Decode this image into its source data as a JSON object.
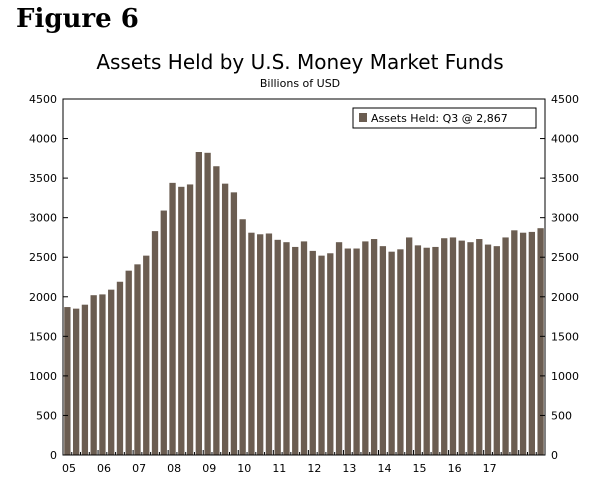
{
  "figure_label": "Figure 6",
  "chart_data": {
    "type": "bar",
    "title": "Assets Held by U.S. Money Market Funds",
    "subtitle": "Billions of USD",
    "xlabel": "",
    "ylabel": "",
    "ylim": [
      0,
      4500
    ],
    "yticks": [
      0,
      500,
      1000,
      1500,
      2000,
      2500,
      3000,
      3500,
      4000,
      4500
    ],
    "x_tick_labels": [
      "05",
      "06",
      "07",
      "08",
      "09",
      "10",
      "11",
      "12",
      "13",
      "14",
      "15",
      "16",
      "17"
    ],
    "grid": false,
    "legend_position": "top-right",
    "bar_color": "#6b5d51",
    "series": [
      {
        "name": "Assets Held: Q3 @ 2,867",
        "values": [
          1870,
          1850,
          1900,
          2020,
          2030,
          2090,
          2190,
          2330,
          2410,
          2520,
          2830,
          3090,
          3440,
          3390,
          3420,
          3830,
          3820,
          3650,
          3430,
          3320,
          2980,
          2810,
          2790,
          2800,
          2720,
          2690,
          2630,
          2700,
          2580,
          2520,
          2550,
          2690,
          2610,
          2610,
          2700,
          2730,
          2640,
          2570,
          2600,
          2750,
          2650,
          2620,
          2630,
          2740,
          2750,
          2710,
          2690,
          2730,
          2660,
          2640,
          2750,
          2840,
          2810,
          2820,
          2867
        ]
      }
    ]
  }
}
